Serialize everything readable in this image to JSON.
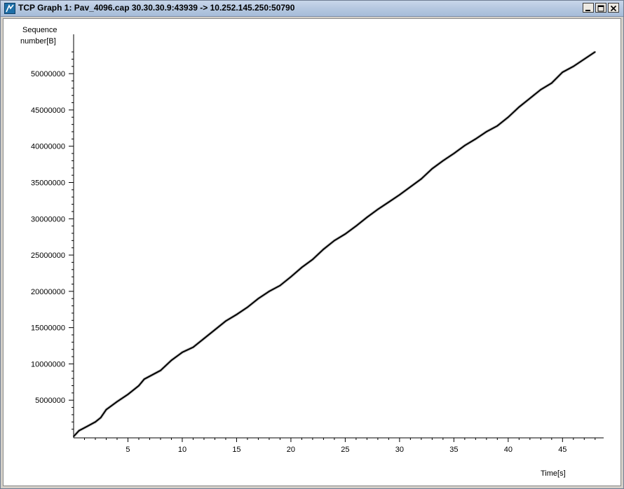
{
  "window": {
    "title": "TCP Graph 1: Pav_4096.cap 30.30.30.9:43939 -> 10.252.145.250:50790",
    "icon": "tcp-graph-app-icon"
  },
  "chart_data": {
    "type": "line",
    "ylabel_line1": "Sequence",
    "ylabel_line2": "number[B]",
    "xlabel": "Time[s]",
    "xlim": [
      0,
      48.4
    ],
    "ylim": [
      0,
      53200000
    ],
    "x_ticks": [
      5,
      10,
      15,
      20,
      25,
      30,
      35,
      40,
      45
    ],
    "y_ticks": [
      5000000,
      10000000,
      15000000,
      20000000,
      25000000,
      30000000,
      35000000,
      40000000,
      45000000,
      50000000
    ],
    "grid": false,
    "series": [
      {
        "color": "#000000",
        "x": [
          0,
          0.5,
          1,
          2,
          2.5,
          3,
          4,
          5,
          6,
          6.5,
          8,
          9,
          10,
          11,
          12,
          13,
          14,
          15,
          16,
          17,
          18,
          19,
          20,
          21,
          22,
          23,
          24,
          25,
          26,
          27,
          28,
          29,
          30,
          31,
          32,
          33,
          34,
          35,
          36,
          37,
          38,
          39,
          40,
          41,
          42,
          43,
          44,
          45,
          46,
          47,
          48
        ],
        "y": [
          0,
          800000,
          1200000,
          2000000,
          2600000,
          3700000,
          4800000,
          5800000,
          7000000,
          7900000,
          9100000,
          10500000,
          11600000,
          12300000,
          13500000,
          14700000,
          15900000,
          16800000,
          17800000,
          19000000,
          20000000,
          20800000,
          22000000,
          23300000,
          24400000,
          25800000,
          27000000,
          27900000,
          29000000,
          30200000,
          31300000,
          32300000,
          33300000,
          34400000,
          35500000,
          36900000,
          38000000,
          39000000,
          40100000,
          41000000,
          42000000,
          42800000,
          44000000,
          45400000,
          46600000,
          47800000,
          48700000,
          50200000,
          51000000,
          52000000,
          53000000
        ]
      }
    ]
  }
}
